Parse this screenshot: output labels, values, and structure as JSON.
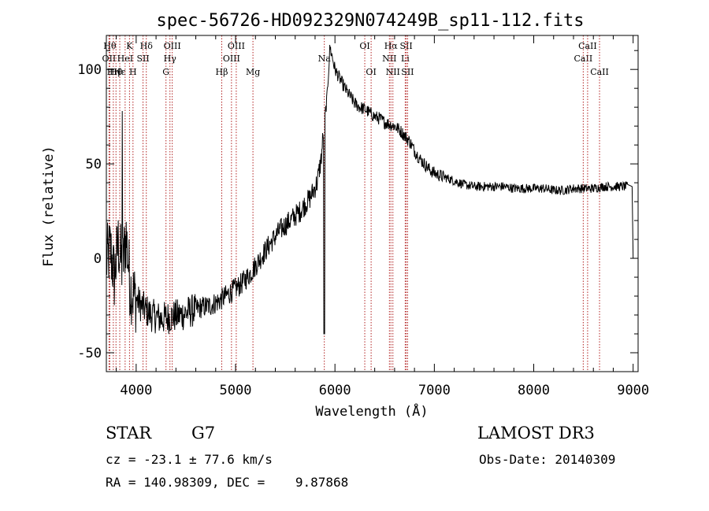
{
  "chart_data": {
    "type": "line",
    "title": "spec-56726-HD092329N074249B_sp11-112.fits",
    "xlabel": "Wavelength (Å)",
    "ylabel": "Flux (relative)",
    "xlim": [
      3700,
      9050
    ],
    "ylim": [
      -60,
      118
    ],
    "xticks": [
      4000,
      5000,
      6000,
      7000,
      8000,
      9000
    ],
    "yticks": [
      -50,
      0,
      50,
      100
    ],
    "series": [
      {
        "x": [
          3700,
          3740,
          3780,
          3820,
          3860,
          3900,
          3940,
          3980,
          4050,
          4150,
          4250,
          4350,
          4450,
          4550,
          4650,
          4750,
          4850,
          4950,
          5050,
          5150,
          5250,
          5350,
          5450,
          5550,
          5650,
          5750,
          5820,
          5860,
          5890,
          5920,
          5950,
          6000,
          6050,
          6100,
          6150,
          6200,
          6250,
          6300,
          6350,
          6400,
          6450,
          6500,
          6550,
          6600,
          6650,
          6700,
          6750,
          6800,
          6850,
          6900,
          6950,
          7000,
          7050,
          7100,
          7200,
          7300,
          7400,
          7500,
          7600,
          7700,
          7800,
          7900,
          8000,
          8100,
          8200,
          8300,
          8400,
          8500,
          8600,
          8700,
          8800,
          8900,
          8950,
          9000
        ],
        "y": [
          -2,
          5,
          -10,
          8,
          -5,
          12,
          -15,
          -20,
          -25,
          -30,
          -32,
          -31,
          -30,
          -28,
          -26,
          -25,
          -22,
          -18,
          -14,
          -8,
          0,
          8,
          15,
          20,
          25,
          32,
          40,
          52,
          70,
          85,
          112,
          100,
          95,
          90,
          86,
          82,
          80,
          79,
          77,
          75,
          74,
          72,
          71,
          70,
          68,
          65,
          62,
          57,
          53,
          50,
          47,
          45,
          44,
          43,
          41,
          39,
          38,
          38,
          38,
          38,
          37,
          37,
          37,
          37,
          36,
          36,
          37,
          37,
          37,
          38,
          38,
          38,
          38,
          0
        ]
      }
    ],
    "lines": [
      {
        "w": 3735,
        "label": "Hθ",
        "row": 1
      },
      {
        "w": 3727,
        "label": "OII",
        "row": 2
      },
      {
        "w": 3770,
        "label": "Hη",
        "row": 3
      },
      {
        "w": 3797,
        "label": "Hθ",
        "row": 3
      },
      {
        "w": 3835,
        "label": "Hε",
        "row": 3
      },
      {
        "w": 3889,
        "label": "HeI",
        "row": 2
      },
      {
        "w": 3933,
        "label": "K",
        "row": 1
      },
      {
        "w": 3968,
        "label": "H",
        "row": 3
      },
      {
        "w": 4069,
        "label": "SII",
        "row": 2
      },
      {
        "w": 4102,
        "label": "Hδ",
        "row": 1
      },
      {
        "w": 4300,
        "label": "G",
        "row": 3
      },
      {
        "w": 4340,
        "label": "Hγ",
        "row": 2
      },
      {
        "w": 4363,
        "label": "OIII",
        "row": 1
      },
      {
        "w": 4861,
        "label": "Hβ",
        "row": 3
      },
      {
        "w": 4959,
        "label": "OIII",
        "row": 2
      },
      {
        "w": 5007,
        "label": "OIII",
        "row": 1
      },
      {
        "w": 5175,
        "label": "Mg",
        "row": 3
      },
      {
        "w": 5893,
        "label": "Na",
        "row": 2
      },
      {
        "w": 6300,
        "label": "OI",
        "row": 1
      },
      {
        "w": 6364,
        "label": "OI",
        "row": 3
      },
      {
        "w": 6548,
        "label": "NII",
        "row": 2
      },
      {
        "w": 6563,
        "label": "Hα",
        "row": 1
      },
      {
        "w": 6583,
        "label": "NII",
        "row": 3
      },
      {
        "w": 6707,
        "label": "Li",
        "row": 2
      },
      {
        "w": 6717,
        "label": "SII",
        "row": 1
      },
      {
        "w": 6731,
        "label": "SII",
        "row": 3
      },
      {
        "w": 8498,
        "label": "CaII",
        "row": 2
      },
      {
        "w": 8542,
        "label": "CaII",
        "row": 1
      },
      {
        "w": 8662,
        "label": "CaII",
        "row": 3
      }
    ]
  },
  "info": {
    "object_type": "STAR",
    "subclass": "G7",
    "survey": "LAMOST DR3",
    "cz": "cz = -23.1 ± 77.6 km/s",
    "obs_date": "Obs-Date: 20140309",
    "radec": "RA = 140.98309, DEC =    9.87868"
  }
}
